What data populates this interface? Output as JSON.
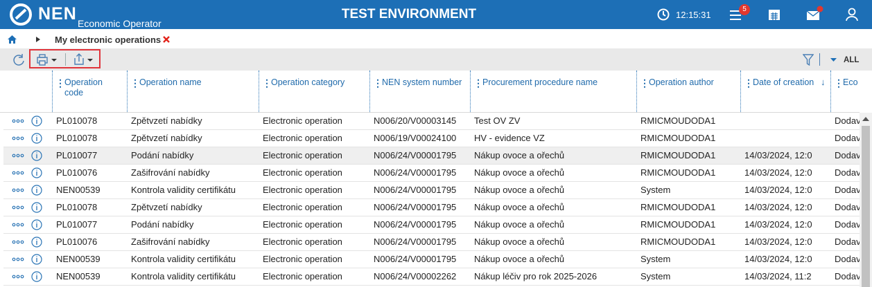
{
  "header": {
    "logo": "NEN",
    "subtitle": "Economic Operator",
    "title": "TEST ENVIRONMENT",
    "clock": "12:15:31",
    "notification_count": 5
  },
  "breadcrumb": {
    "current": "My electronic operations"
  },
  "toolbar": {
    "filter_scope": "ALL"
  },
  "table": {
    "columns": [
      "Operation code",
      "Operation name",
      "Operation category",
      "NEN system number",
      "Procurement procedure name",
      "Operation author",
      "Date of creation",
      "Eco"
    ],
    "rows": [
      [
        "PL010078",
        "Zpětvzetí nabídky",
        "Electronic operation",
        "N006/20/V00003145",
        "Test OV ZV",
        "RMICMOUDODA1",
        null,
        "Dodav"
      ],
      [
        "PL010078",
        "Zpětvzetí nabídky",
        "Electronic operation",
        "N006/19/V00024100",
        "HV - evidence VZ",
        "RMICMOUDODA1",
        null,
        "Dodav"
      ],
      [
        "PL010077",
        "Podání nabídky",
        "Electronic operation",
        "N006/24/V00001795",
        "Nákup ovoce a ořechů",
        "RMICMOUDODA1",
        "14/03/2024, 12:0",
        "Dodav"
      ],
      [
        "PL010076",
        "Zašifrování nabídky",
        "Electronic operation",
        "N006/24/V00001795",
        "Nákup ovoce a ořechů",
        "RMICMOUDODA1",
        "14/03/2024, 12:0",
        "Dodav"
      ],
      [
        "NEN00539",
        "Kontrola validity certifikátu",
        "Electronic operation",
        "N006/24/V00001795",
        "Nákup ovoce a ořechů",
        "System",
        "14/03/2024, 12:0",
        "Dodav"
      ],
      [
        "PL010078",
        "Zpětvzetí nabídky",
        "Electronic operation",
        "N006/24/V00001795",
        "Nákup ovoce a ořechů",
        "RMICMOUDODA1",
        "14/03/2024, 12:0",
        "Dodav"
      ],
      [
        "PL010077",
        "Podání nabídky",
        "Electronic operation",
        "N006/24/V00001795",
        "Nákup ovoce a ořechů",
        "RMICMOUDODA1",
        "14/03/2024, 12:0",
        "Dodav"
      ],
      [
        "PL010076",
        "Zašifrování nabídky",
        "Electronic operation",
        "N006/24/V00001795",
        "Nákup ovoce a ořechů",
        "RMICMOUDODA1",
        "14/03/2024, 12:0",
        "Dodav"
      ],
      [
        "NEN00539",
        "Kontrola validity certifikátu",
        "Electronic operation",
        "N006/24/V00001795",
        "Nákup ovoce a ořechů",
        "System",
        "14/03/2024, 12:0",
        "Dodav"
      ],
      [
        "NEN00539",
        "Kontrola validity certifikátu",
        "Electronic operation",
        "N006/24/V00002262",
        "Nákup léčiv pro rok 2025-2026",
        "System",
        "14/03/2024, 11:2",
        "Dodav"
      ]
    ]
  }
}
